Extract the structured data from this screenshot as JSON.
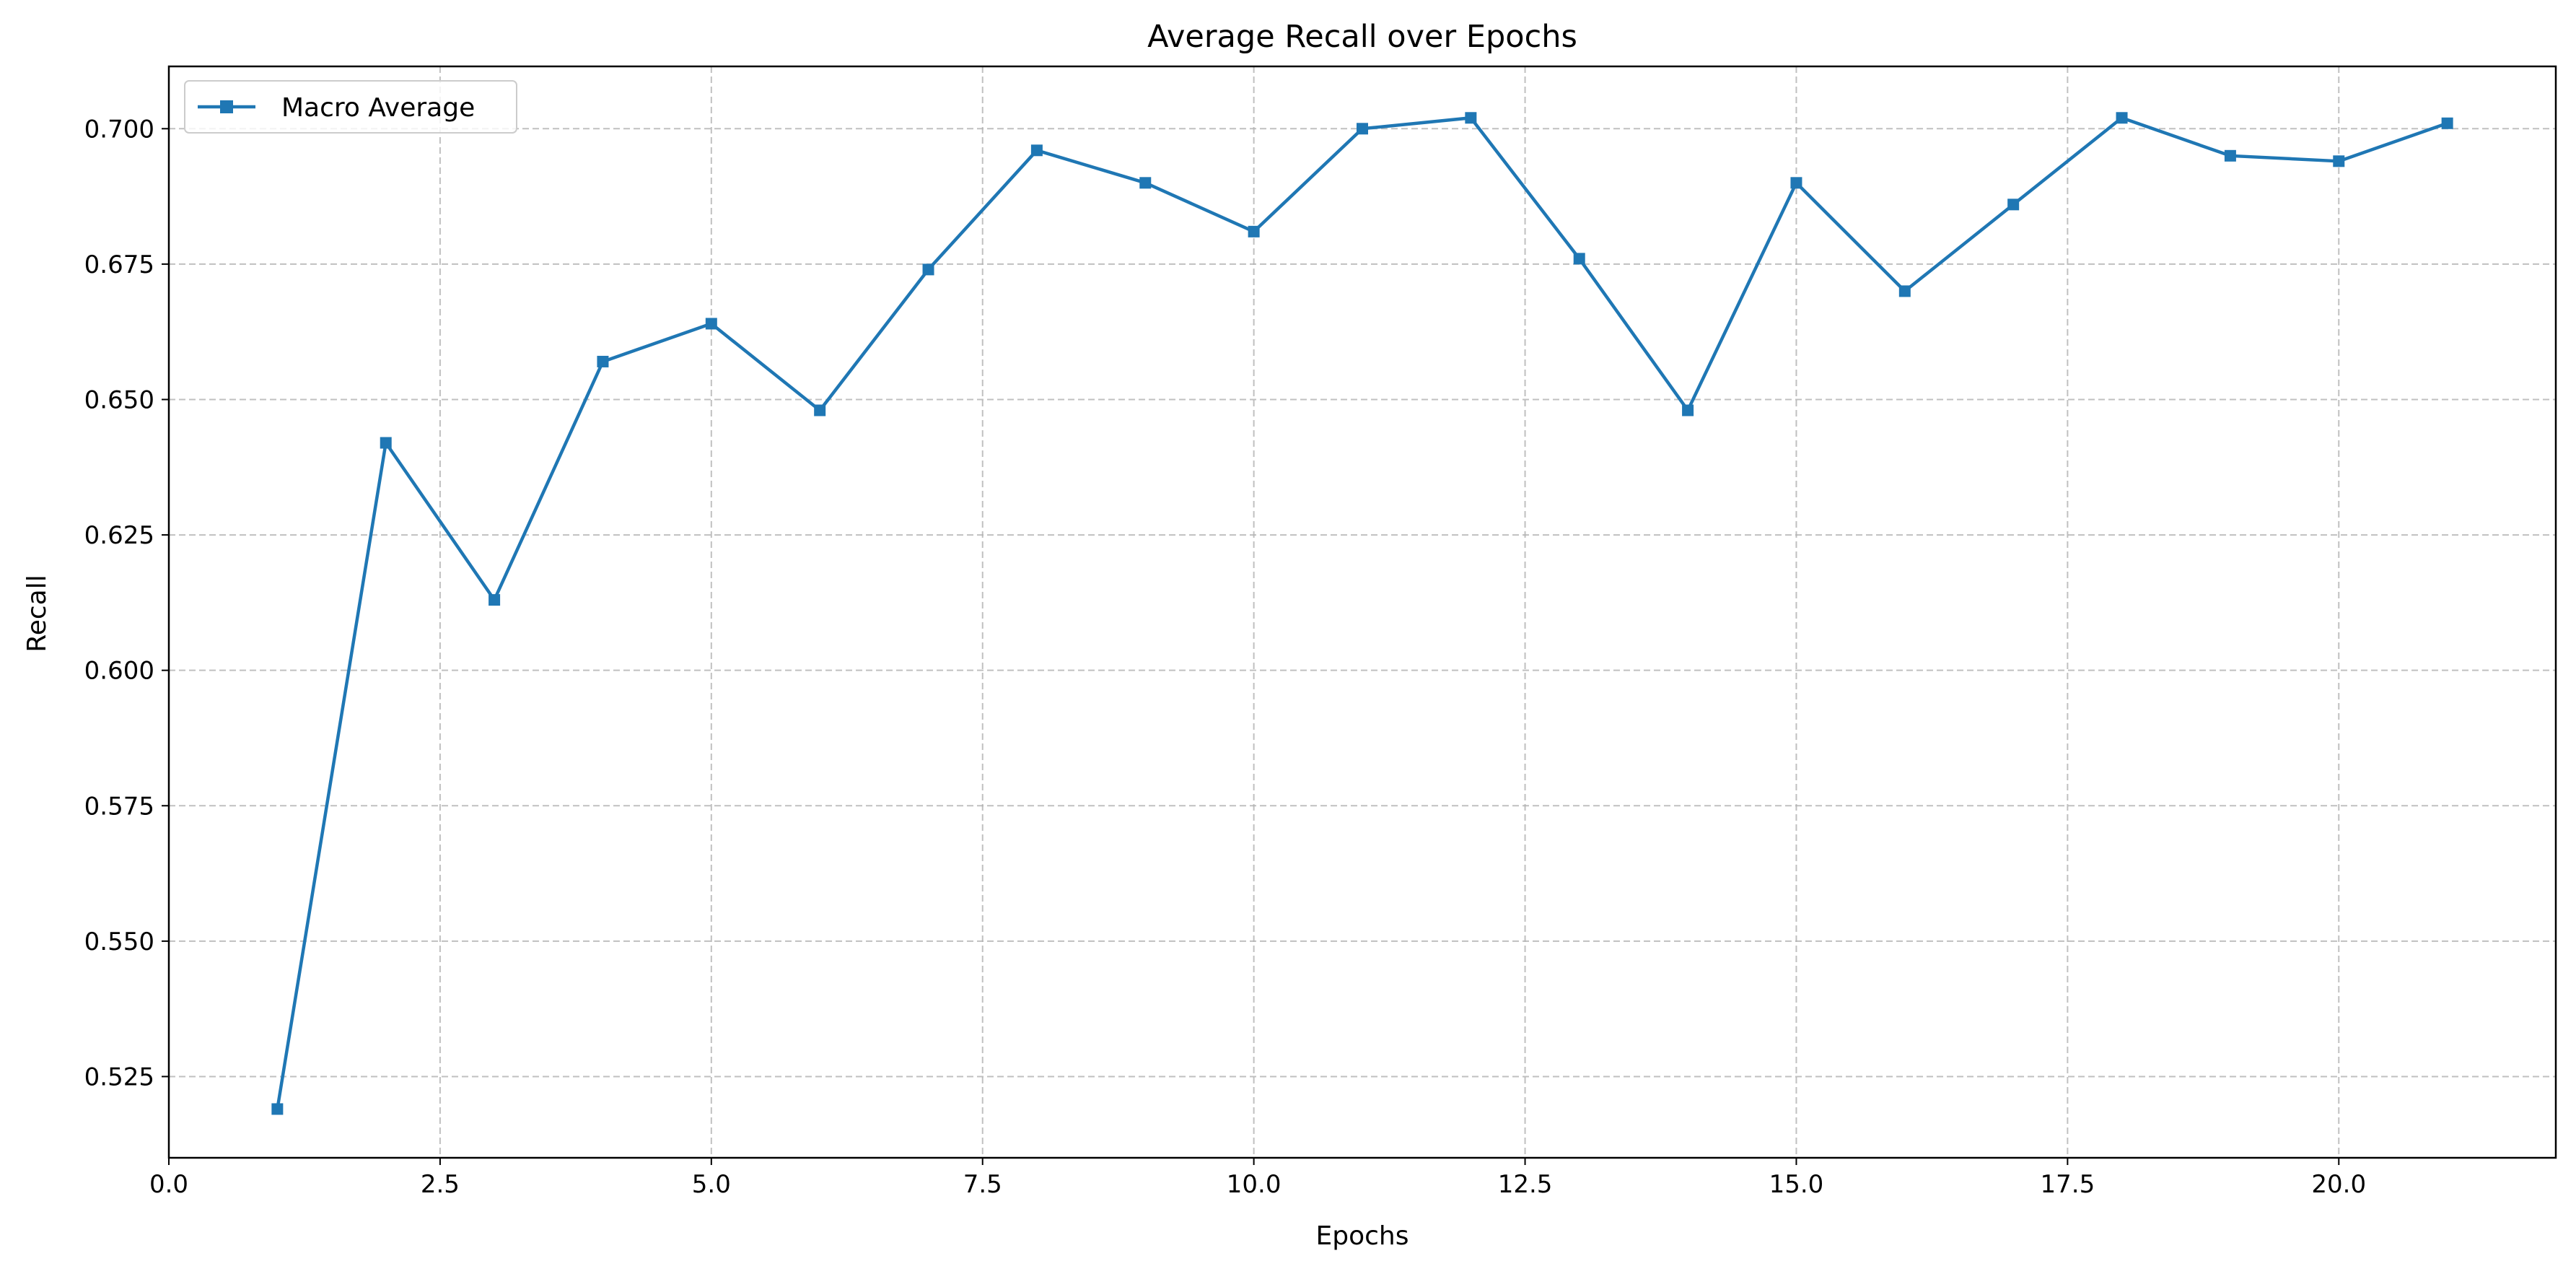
{
  "chart_data": {
    "type": "line",
    "title": "Average Recall over Epochs",
    "xlabel": "Epochs",
    "ylabel": "Recall",
    "xlim": [
      0,
      22
    ],
    "ylim": [
      0.51,
      0.7115
    ],
    "xticks": [
      0.0,
      2.5,
      5.0,
      7.5,
      10.0,
      12.5,
      15.0,
      17.5,
      20.0
    ],
    "xtick_labels": [
      "0.0",
      "2.5",
      "5.0",
      "7.5",
      "10.0",
      "12.5",
      "15.0",
      "17.5",
      "20.0"
    ],
    "yticks": [
      0.525,
      0.55,
      0.575,
      0.6,
      0.625,
      0.65,
      0.675,
      0.7
    ],
    "ytick_labels": [
      "0.525",
      "0.550",
      "0.575",
      "0.600",
      "0.625",
      "0.650",
      "0.675",
      "0.700"
    ],
    "grid": true,
    "legend_position": "upper-left",
    "x": [
      1,
      2,
      3,
      4,
      5,
      6,
      7,
      8,
      9,
      10,
      11,
      12,
      13,
      14,
      15,
      16,
      17,
      18,
      19,
      20,
      21
    ],
    "series": [
      {
        "name": "Macro Average",
        "marker": "square",
        "color": "#1f77b4",
        "values": [
          0.519,
          0.642,
          0.613,
          0.657,
          0.664,
          0.648,
          0.674,
          0.696,
          0.69,
          0.681,
          0.7,
          0.702,
          0.676,
          0.648,
          0.69,
          0.67,
          0.686,
          0.702,
          0.695,
          0.694,
          0.701
        ]
      }
    ]
  },
  "colors": {
    "series": "#1f77b4",
    "grid": "#b0b0b0",
    "axes": "#000000",
    "background": "#ffffff"
  }
}
